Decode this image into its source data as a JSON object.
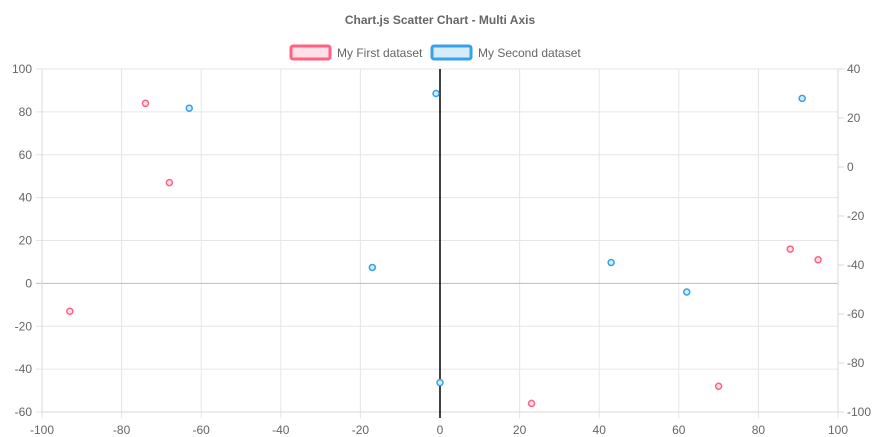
{
  "chart_data": {
    "type": "scatter",
    "title": "Chart.js Scatter Chart - Multi Axis",
    "legend_position": "top",
    "grid": true,
    "x_axis": {
      "range": [
        -100,
        100
      ],
      "ticks": [
        "-100",
        "-80",
        "-60",
        "-40",
        "-20",
        "0",
        "20",
        "40",
        "60",
        "80",
        "100"
      ]
    },
    "y_axis_left": {
      "range": [
        -60,
        100
      ],
      "ticks": [
        "100",
        "80",
        "60",
        "40",
        "20",
        "0",
        "-20",
        "-40",
        "-60"
      ]
    },
    "y_axis_right": {
      "range": [
        -100,
        40
      ],
      "ticks": [
        "40",
        "20",
        "0",
        "-20",
        "-40",
        "-60",
        "-80",
        "-100"
      ]
    },
    "series": [
      {
        "name": "My First dataset",
        "axis": "left",
        "color": "#ff6384",
        "fill": "#ffe0e6",
        "points": [
          {
            "x": -93,
            "y": -13
          },
          {
            "x": -74,
            "y": 84
          },
          {
            "x": -68,
            "y": 47
          },
          {
            "x": 23,
            "y": -56
          },
          {
            "x": 70,
            "y": -48
          },
          {
            "x": 88,
            "y": 16
          },
          {
            "x": 95,
            "y": 11
          }
        ]
      },
      {
        "name": "My Second dataset",
        "axis": "right",
        "color": "#36a2eb",
        "fill": "#d7ecfb",
        "points": [
          {
            "x": -63,
            "y": 24
          },
          {
            "x": -17,
            "y": -41
          },
          {
            "x": -1,
            "y": 30
          },
          {
            "x": 0,
            "y": -88
          },
          {
            "x": 43,
            "y": -39
          },
          {
            "x": 62,
            "y": -51
          },
          {
            "x": 91,
            "y": 28
          }
        ]
      }
    ]
  }
}
